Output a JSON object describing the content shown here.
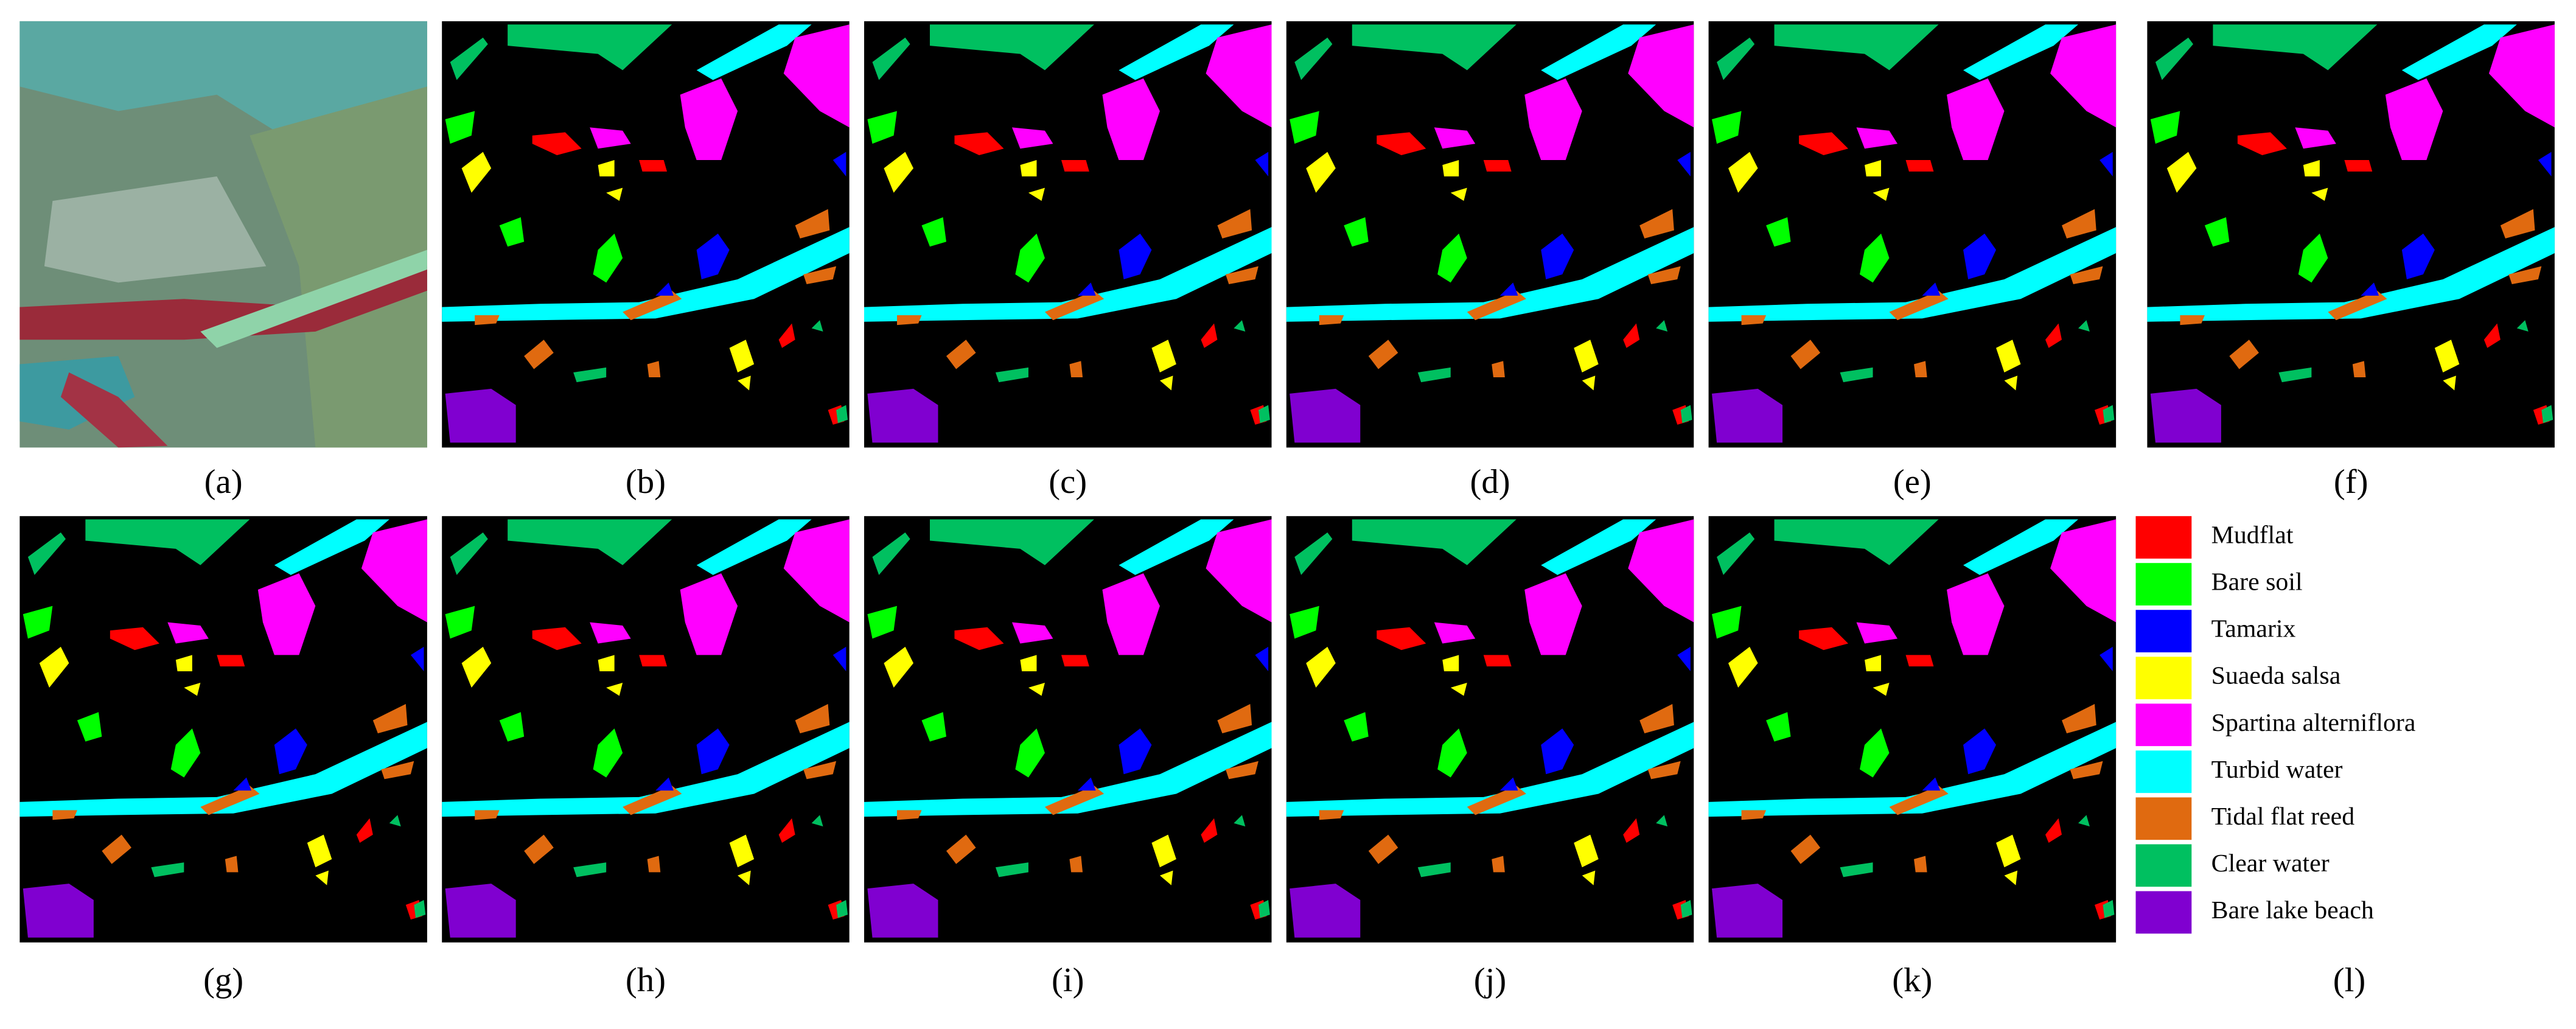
{
  "panels": [
    {
      "label": "(a)"
    },
    {
      "label": "(b)"
    },
    {
      "label": "(c)"
    },
    {
      "label": "(d)"
    },
    {
      "label": "(e)"
    },
    {
      "label": "(f)"
    },
    {
      "label": "(g)"
    },
    {
      "label": "(h)"
    },
    {
      "label": "(i)"
    },
    {
      "label": "(j)"
    },
    {
      "label": "(k)"
    },
    {
      "label": "(l)"
    }
  ],
  "legend": [
    {
      "name": "Mudflat",
      "color": "#ff0000"
    },
    {
      "name": "Bare soil",
      "color": "#00ff00"
    },
    {
      "name": "Tamarix",
      "color": "#0000ff"
    },
    {
      "name": "Suaeda salsa",
      "color": "#ffff00"
    },
    {
      "name": "Spartina alterniflora",
      "color": "#ff00ff"
    },
    {
      "name": "Turbid water",
      "color": "#00ffff"
    },
    {
      "name": "Tidal flat reed",
      "color": "#e06a10"
    },
    {
      "name": "Clear water",
      "color": "#00c060"
    },
    {
      "name": "Bare lake beach",
      "color": "#8000d0"
    }
  ]
}
